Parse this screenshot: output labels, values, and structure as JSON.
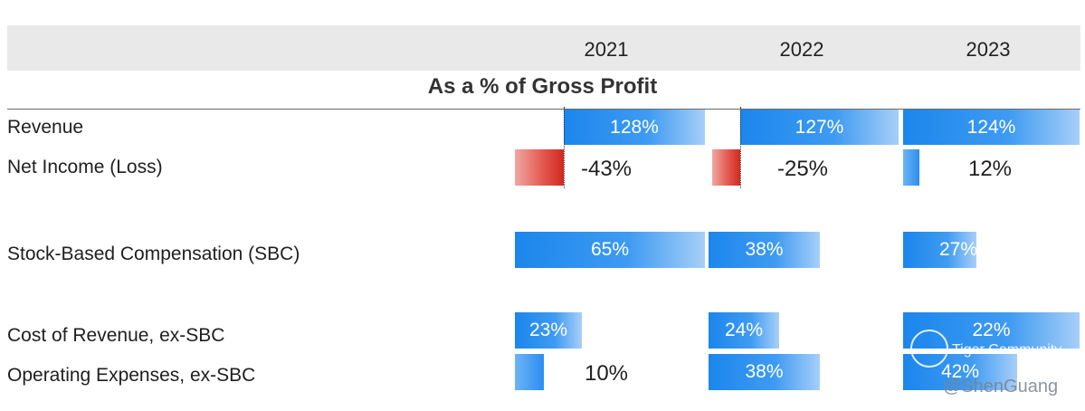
{
  "chart_data": {
    "type": "bar",
    "title": "As a % of Gross Profit",
    "years": [
      "2021",
      "2022",
      "2023"
    ],
    "series": [
      {
        "name": "Revenue",
        "values": [
          128,
          127,
          124
        ],
        "labels": [
          "128%",
          "127%",
          "124%"
        ]
      },
      {
        "name": "Net Income (Loss)",
        "values": [
          -43,
          -25,
          12
        ],
        "labels": [
          "-43%",
          "-25%",
          "12%"
        ]
      },
      {
        "name": "Stock-Based  Compensation (SBC)",
        "values": [
          65,
          38,
          27
        ],
        "labels": [
          "65%",
          "38%",
          "27%"
        ]
      },
      {
        "name": "Cost of  Revenue, ex-SBC",
        "values": [
          23,
          24,
          22
        ],
        "labels": [
          "23%",
          "24%",
          "22%"
        ]
      },
      {
        "name": "Operating  Expenses, ex-SBC",
        "values": [
          10,
          38,
          42
        ],
        "labels": [
          "10%",
          "38%",
          "42%"
        ]
      }
    ]
  },
  "watermark": {
    "community": "Tiger Community",
    "handle": "@ShenGuang"
  },
  "colors": {
    "positive": "#2b8ef0",
    "negative": "#d9362c",
    "header_band": "#e9e9e9"
  }
}
